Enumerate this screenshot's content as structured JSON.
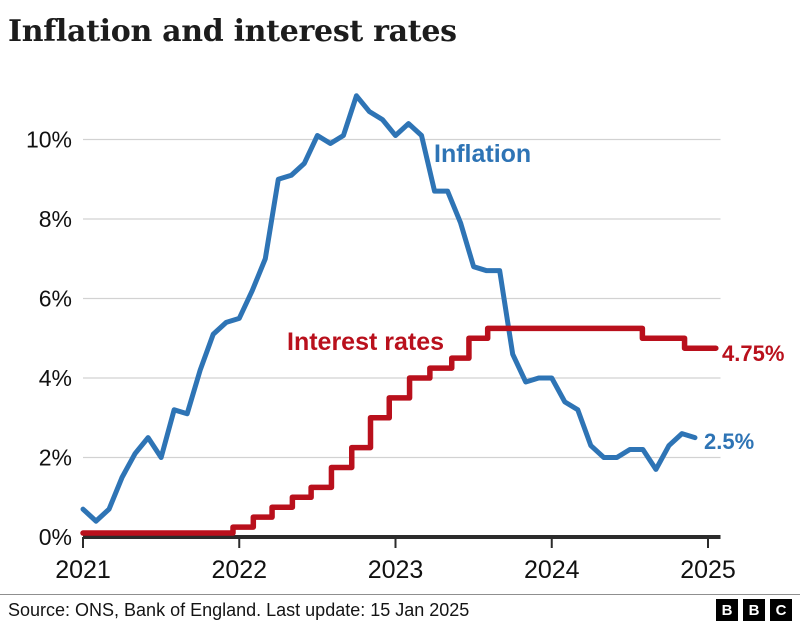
{
  "title": "Inflation and interest rates",
  "footer": {
    "source": "Source: ONS, Bank of England. Last update: 15 Jan 2025",
    "logo_letters": [
      "B",
      "B",
      "C"
    ]
  },
  "chart_data": {
    "type": "line",
    "title": "Inflation and interest rates",
    "xlabel": "",
    "ylabel": "",
    "xlim": [
      2021,
      2025.08
    ],
    "ylim": [
      0,
      11.5
    ],
    "grid": "horizontal",
    "legend_position": "inline-labels",
    "x_ticks": [
      2021,
      2022,
      2023,
      2024,
      2025
    ],
    "x_tick_labels": [
      "2021",
      "2022",
      "2023",
      "2024",
      "2025"
    ],
    "y_ticks": [
      0,
      2,
      4,
      6,
      8,
      10
    ],
    "y_tick_labels": [
      "0%",
      "2%",
      "4%",
      "6%",
      "8%",
      "10%"
    ],
    "colors": {
      "inflation_blue": "#2e74b5",
      "rates_red": "#b9101c",
      "axis": "#2b2b2b",
      "grid": "#d2d2d2",
      "title_text": "#1c1c1c",
      "tick_text": "#111111"
    },
    "series": [
      {
        "name": "inflation",
        "label": "Inflation",
        "end_label": "2.5%",
        "color": "#2e74b5",
        "unit": "%",
        "x_start": 2021.0,
        "x_step_months": 1,
        "values": [
          0.7,
          0.4,
          0.7,
          1.5,
          2.1,
          2.5,
          2.0,
          3.2,
          3.1,
          4.2,
          5.1,
          5.4,
          5.5,
          6.2,
          7.0,
          9.0,
          9.1,
          9.4,
          10.1,
          9.9,
          10.1,
          11.1,
          10.7,
          10.5,
          10.1,
          10.4,
          10.1,
          8.7,
          8.7,
          7.9,
          6.8,
          6.7,
          6.7,
          4.6,
          3.9,
          4.0,
          4.0,
          3.4,
          3.2,
          2.3,
          2.0,
          2.0,
          2.2,
          2.2,
          1.7,
          2.3,
          2.6,
          2.5
        ]
      },
      {
        "name": "interest-rates",
        "label": "Interest rates",
        "end_label": "4.75%",
        "color": "#b9101c",
        "unit": "%",
        "style": "step",
        "x_end": 2025.05,
        "steps": [
          [
            2021.0,
            0.1
          ],
          [
            2021.96,
            0.25
          ],
          [
            2022.09,
            0.5
          ],
          [
            2022.21,
            0.75
          ],
          [
            2022.34,
            1.0
          ],
          [
            2022.46,
            1.25
          ],
          [
            2022.59,
            1.75
          ],
          [
            2022.72,
            2.25
          ],
          [
            2022.84,
            3.0
          ],
          [
            2022.96,
            3.5
          ],
          [
            2023.09,
            4.0
          ],
          [
            2023.22,
            4.25
          ],
          [
            2023.36,
            4.5
          ],
          [
            2023.47,
            5.0
          ],
          [
            2023.59,
            5.25
          ],
          [
            2024.58,
            5.0
          ],
          [
            2024.85,
            4.75
          ]
        ]
      }
    ]
  }
}
